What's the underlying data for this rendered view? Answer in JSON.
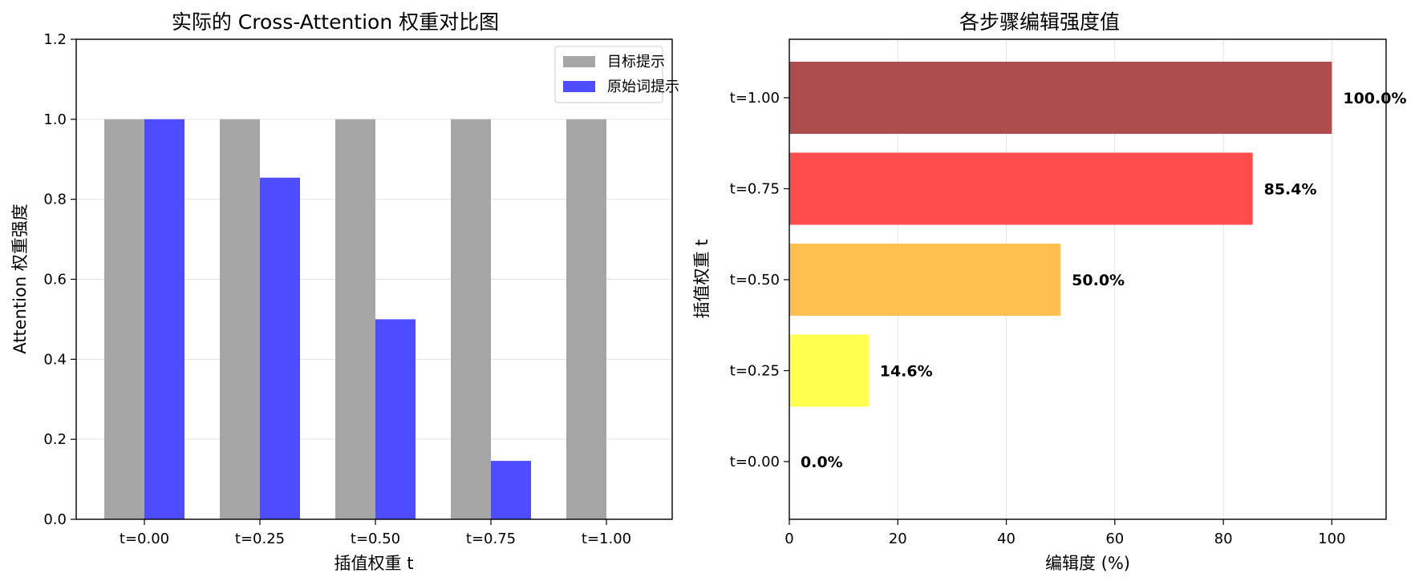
{
  "chart_data": [
    {
      "type": "bar",
      "title": "实际的 Cross-Attention 权重对比图",
      "xlabel": "插值权重 t",
      "ylabel": "Attention 权重强度",
      "categories": [
        "t=0.00",
        "t=0.25",
        "t=0.50",
        "t=0.75",
        "t=1.00"
      ],
      "series": [
        {
          "name": "目标提示",
          "color": "#a6a6a6",
          "values": [
            1.0,
            1.0,
            1.0,
            1.0,
            1.0
          ]
        },
        {
          "name": "原始词提示",
          "color": "#4d4dff",
          "values": [
            1.0,
            0.854,
            0.5,
            0.146,
            0.0
          ]
        }
      ],
      "ylim": [
        0,
        1.2
      ],
      "yticks": [
        "0.0",
        "0.2",
        "0.4",
        "0.6",
        "0.8",
        "1.0",
        "1.2"
      ],
      "grid": "y",
      "legend": "top-right"
    },
    {
      "type": "bar",
      "orientation": "horizontal",
      "title": "各步骤编辑强度值",
      "xlabel": "编辑度 (%)",
      "ylabel": "插值权重 t",
      "categories": [
        "t=0.00",
        "t=0.25",
        "t=0.50",
        "t=0.75",
        "t=1.00"
      ],
      "values": [
        0.0,
        14.6,
        50.0,
        85.4,
        100.0
      ],
      "data_labels": [
        "0.0%",
        "14.6%",
        "50.0%",
        "85.4%",
        "100.0%"
      ],
      "colors": [
        "#ffffff",
        "#ffff4d",
        "#ffc04d",
        "#ff4d4d",
        "#ad4d4d"
      ],
      "xlim": [
        0,
        110
      ],
      "xticks": [
        "0",
        "20",
        "40",
        "60",
        "80",
        "100"
      ],
      "grid": "x"
    }
  ]
}
